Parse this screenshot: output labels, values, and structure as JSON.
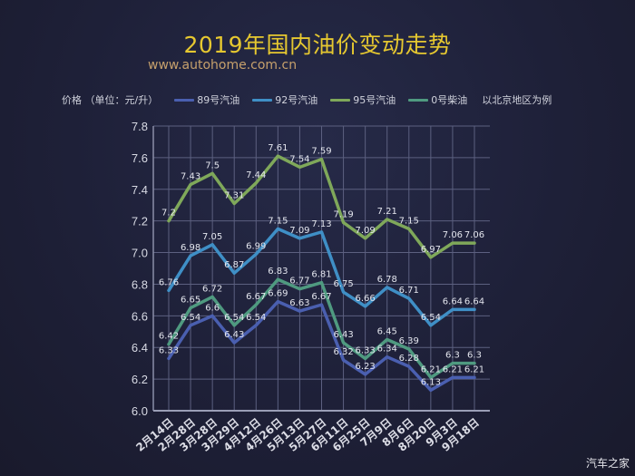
{
  "header": {
    "title": "2019年国内油价变动走势",
    "site": "www.autohome.com.cn"
  },
  "legend": {
    "unit_label": "价格 （单位：元/升）",
    "items": [
      {
        "label": "89号汽油",
        "color": "#4a5fb0"
      },
      {
        "label": "92号汽油",
        "color": "#3f8fc6"
      },
      {
        "label": "95号汽油",
        "color": "#7fa85a"
      },
      {
        "label": "0号柴油",
        "color": "#4f9a80"
      }
    ],
    "note": "以北京地区为例"
  },
  "watermark": "汽车之家",
  "chart_data": {
    "type": "line",
    "title": "2019年国内油价变动走势",
    "xlabel": "",
    "ylabel": "价格（单位：元/升）",
    "ylim": [
      6.0,
      7.8
    ],
    "yticks": [
      "6.0",
      "6.2",
      "6.4",
      "6.6",
      "6.8",
      "7.0",
      "7.2",
      "7.4",
      "7.6",
      "7.8"
    ],
    "grid": true,
    "legend_position": "top",
    "categories": [
      "2月14日",
      "2月28日",
      "3月28日",
      "3月29日",
      "4月12日",
      "4月26日",
      "5月13日",
      "5月27日",
      "6月11日",
      "6月25日",
      "7月9日",
      "8月6日",
      "8月20日",
      "9月3日",
      "9月18日"
    ],
    "series": [
      {
        "name": "89号汽油",
        "color": "#4a5fb0",
        "values": [
          6.33,
          6.54,
          6.6,
          6.43,
          6.54,
          6.69,
          6.63,
          6.67,
          6.32,
          6.23,
          6.34,
          6.28,
          6.13,
          6.21,
          6.21
        ]
      },
      {
        "name": "92号汽油",
        "color": "#3f8fc6",
        "values": [
          6.76,
          6.98,
          7.05,
          6.87,
          6.99,
          7.15,
          7.09,
          7.13,
          6.75,
          6.66,
          6.78,
          6.71,
          6.54,
          6.64,
          6.64
        ]
      },
      {
        "name": "95号汽油",
        "color": "#7fa85a",
        "values": [
          7.2,
          7.43,
          7.5,
          7.31,
          7.44,
          7.61,
          7.54,
          7.59,
          7.19,
          7.09,
          7.21,
          7.15,
          6.97,
          7.06,
          7.06
        ]
      },
      {
        "name": "0号柴油",
        "color": "#4f9a80",
        "values": [
          6.42,
          6.65,
          6.72,
          6.54,
          6.67,
          6.83,
          6.77,
          6.81,
          6.43,
          6.33,
          6.45,
          6.39,
          6.21,
          6.3,
          6.3
        ]
      }
    ]
  }
}
